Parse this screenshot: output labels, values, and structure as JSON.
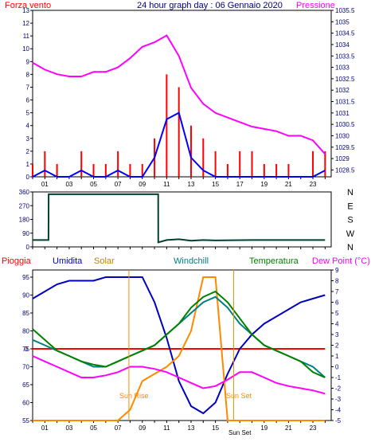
{
  "header": {
    "title": "24 hour graph day : 06 Gennaio 2020",
    "left_label": "Forza vento",
    "right_label": "Pressione"
  },
  "colors": {
    "wind": "#ff0000",
    "wind_gust": "#0000ff",
    "pressure": "#ff00ff",
    "direction": "#004030",
    "rain": "#ff0000",
    "humidity": "#0000c0",
    "solar": "#ff8800",
    "windchill": "#008080",
    "temperature": "#008000",
    "dewpoint": "#ff00ff",
    "axis": "#000080",
    "frame": "#000000"
  },
  "x_ticks": [
    "01",
    "03",
    "05",
    "07",
    "09",
    "11",
    "13",
    "15",
    "17",
    "19",
    "21",
    "23"
  ],
  "chart_data": [
    {
      "type": "line",
      "title": "24 hour graph day : 06 Gennaio 2020",
      "ylabel": "Forza vento",
      "y2label": "Pressione",
      "ylim": [
        0,
        13
      ],
      "y2lim": [
        1028.2,
        1035.5
      ],
      "yticks": [
        "0",
        "1",
        "2",
        "3",
        "4",
        "5",
        "6",
        "7",
        "8",
        "9",
        "10",
        "11",
        "12",
        "13"
      ],
      "y2ticks": [
        "1028.5",
        "1029",
        "1029.5",
        "1030",
        "1030.5",
        "1031",
        "1031.5",
        "1032",
        "1032.5",
        "1033",
        "1033.5",
        "1034",
        "1034.5",
        "1035",
        "1035.5"
      ],
      "x": [
        0,
        1,
        2,
        3,
        4,
        5,
        6,
        7,
        8,
        9,
        10,
        11,
        12,
        13,
        14,
        15,
        16,
        17,
        18,
        19,
        20,
        21,
        22,
        23,
        24
      ],
      "series": [
        {
          "name": "Pressione",
          "axis": "right",
          "values": [
            1033.2,
            1032.9,
            1032.7,
            1032.6,
            1032.6,
            1032.8,
            1032.8,
            1033.0,
            1033.4,
            1033.9,
            1034.1,
            1034.4,
            1033.5,
            1032.1,
            1031.4,
            1031.0,
            1030.8,
            1030.6,
            1030.4,
            1030.3,
            1030.2,
            1030.0,
            1030.0,
            1029.8,
            1029.2
          ]
        },
        {
          "name": "wind",
          "axis": "left",
          "values": [
            1,
            2,
            1,
            0,
            2,
            1,
            1,
            2,
            1,
            1,
            3,
            8,
            7,
            4,
            3,
            2,
            1,
            2,
            2,
            1,
            1,
            1,
            0,
            2,
            2
          ]
        },
        {
          "name": "wind-avg",
          "axis": "left",
          "values": [
            0,
            0.5,
            0,
            0,
            0.5,
            0,
            0,
            0.5,
            0,
            0,
            1.5,
            4.5,
            5,
            1.5,
            0.5,
            0,
            0,
            0,
            0,
            0,
            0,
            0,
            0,
            0,
            0.5
          ]
        }
      ]
    },
    {
      "type": "line",
      "ylim": [
        0,
        360
      ],
      "yticks": [
        "0",
        "90",
        "180",
        "270",
        "360"
      ],
      "y2ticks": [
        "N",
        "W",
        "S",
        "E",
        "N"
      ],
      "x": [
        0,
        1.3,
        1.31,
        10.3,
        10.31,
        11,
        12,
        13,
        14,
        15,
        18,
        21,
        24
      ],
      "series": [
        {
          "name": "direction",
          "values": [
            45,
            45,
            345,
            345,
            30,
            45,
            50,
            40,
            45,
            42,
            45,
            45,
            45
          ]
        }
      ]
    },
    {
      "type": "line",
      "ylim": [
        55,
        97
      ],
      "y2lim": [
        -5,
        9
      ],
      "yticks": [
        "55",
        "60",
        "65",
        "70",
        "75",
        "80",
        "85",
        "90",
        "95"
      ],
      "y2ticks": [
        "-5",
        "-4",
        "-3",
        "-2",
        "-1",
        "0",
        "1",
        "2",
        "3",
        "4",
        "5",
        "6",
        "7",
        "8",
        "9"
      ],
      "annotations": [
        "Sun Rise",
        "Sun Set"
      ],
      "x": [
        0,
        1,
        2,
        3,
        4,
        5,
        6,
        7,
        8,
        9,
        10,
        11,
        12,
        13,
        14,
        15,
        16,
        17,
        18,
        19,
        20,
        21,
        22,
        23,
        24
      ],
      "series": [
        {
          "name": "Pioggia",
          "axis": "left",
          "values": [
            75,
            75,
            75,
            75,
            75,
            75,
            75,
            75,
            75,
            75,
            75,
            75,
            75,
            75,
            75,
            75,
            75,
            75,
            75,
            75,
            75,
            75,
            75,
            75,
            75
          ]
        },
        {
          "name": "Umidita",
          "axis": "left",
          "values": [
            89,
            91,
            93,
            94,
            94,
            94,
            95,
            95,
            95,
            95,
            88,
            78,
            66,
            59,
            57,
            60,
            68,
            75,
            79,
            82,
            84,
            86,
            88,
            89,
            90
          ]
        },
        {
          "name": "Solar",
          "axis": "left",
          "values": [
            55,
            55,
            55,
            55,
            55,
            55,
            55,
            55,
            58,
            66,
            68,
            70,
            73,
            80,
            95,
            95,
            55,
            55,
            55,
            55,
            55,
            55,
            55,
            55,
            55
          ]
        },
        {
          "name": "Windchill",
          "axis": "right",
          "values": [
            2.5,
            2.0,
            1.5,
            1.0,
            0.5,
            0.0,
            0.0,
            0.5,
            1.0,
            1.5,
            2.0,
            3.0,
            4.0,
            5.0,
            6.0,
            6.5,
            5.5,
            4.0,
            3.0,
            2.0,
            1.5,
            1.0,
            0.5,
            0.0,
            -1.0
          ]
        },
        {
          "name": "Temperatura",
          "axis": "right",
          "values": [
            3.5,
            2.5,
            1.5,
            1.0,
            0.5,
            0.2,
            0.0,
            0.5,
            1.0,
            1.5,
            2.0,
            3.0,
            4.0,
            5.5,
            6.5,
            7.0,
            6.0,
            4.5,
            3.0,
            2.0,
            1.5,
            1.0,
            0.5,
            -0.5,
            -1.0
          ]
        },
        {
          "name": "Dew Point (°C)",
          "axis": "right",
          "values": [
            1.0,
            0.5,
            0.0,
            -0.5,
            -1.0,
            -1.0,
            -0.8,
            -0.5,
            0.0,
            0.0,
            -0.2,
            -0.5,
            -1.0,
            -1.5,
            -2.0,
            -1.8,
            -1.2,
            -0.5,
            -0.5,
            -1.0,
            -1.5,
            -1.8,
            -2.0,
            -2.2,
            -2.5
          ]
        }
      ]
    }
  ],
  "legend": {
    "rain": "Pioggia",
    "humidity": "Umidita",
    "solar": "Solar",
    "windchill": "Windchill",
    "temperature": "Temperatura",
    "dewpoint": "Dew Point (°C)"
  },
  "annotations": {
    "sunrise": "Sun Rise",
    "sunset": "Sun Set",
    "sunset_tick": "Sun Set"
  }
}
